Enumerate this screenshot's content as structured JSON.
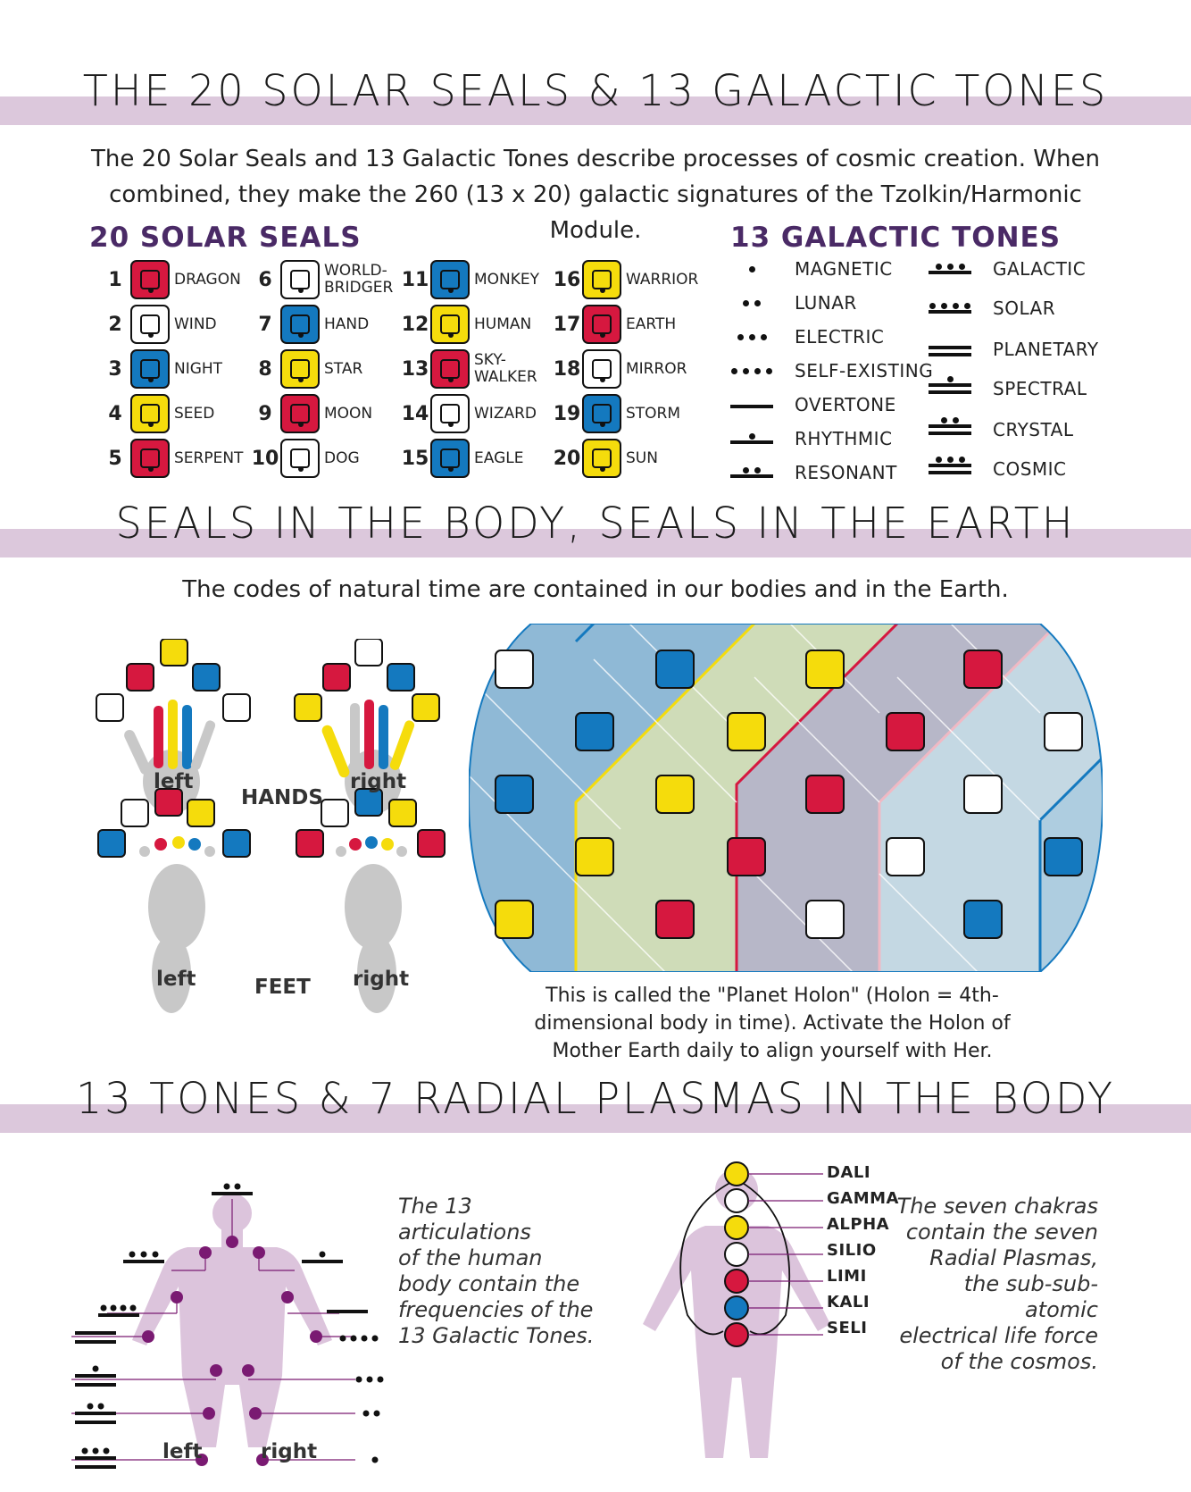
{
  "section1": {
    "title": "THE 20 SOLAR SEALS & 13 GALACTIC TONES",
    "intro_line1": "The 20 Solar Seals and 13 Galactic Tones describe processes of cosmic creation. When",
    "intro_line2": "combined, they make the 260 (13 x 20) galactic signatures of the Tzolkin/Harmonic Module."
  },
  "seals": {
    "heading": "20 SOLAR SEALS",
    "items": [
      {
        "num": "1",
        "name": "DRAGON",
        "color": "red",
        "icon": "dragon-glyph-icon"
      },
      {
        "num": "2",
        "name": "WIND",
        "color": "white",
        "icon": "wind-glyph-icon"
      },
      {
        "num": "3",
        "name": "NIGHT",
        "color": "blue",
        "icon": "night-glyph-icon"
      },
      {
        "num": "4",
        "name": "SEED",
        "color": "yellow",
        "icon": "seed-glyph-icon"
      },
      {
        "num": "5",
        "name": "SERPENT",
        "color": "red",
        "icon": "serpent-glyph-icon"
      },
      {
        "num": "6",
        "name": "WORLD-\nBRIDGER",
        "color": "white",
        "icon": "worldbridger-glyph-icon"
      },
      {
        "num": "7",
        "name": "HAND",
        "color": "blue",
        "icon": "hand-glyph-icon"
      },
      {
        "num": "8",
        "name": "STAR",
        "color": "yellow",
        "icon": "star-glyph-icon"
      },
      {
        "num": "9",
        "name": "MOON",
        "color": "red",
        "icon": "moon-glyph-icon"
      },
      {
        "num": "10",
        "name": "DOG",
        "color": "white",
        "icon": "dog-glyph-icon"
      },
      {
        "num": "11",
        "name": "MONKEY",
        "color": "blue",
        "icon": "monkey-glyph-icon"
      },
      {
        "num": "12",
        "name": "HUMAN",
        "color": "yellow",
        "icon": "human-glyph-icon"
      },
      {
        "num": "13",
        "name": "SKY-\nWALKER",
        "color": "red",
        "icon": "skywalker-glyph-icon"
      },
      {
        "num": "14",
        "name": "WIZARD",
        "color": "white",
        "icon": "wizard-glyph-icon"
      },
      {
        "num": "15",
        "name": "EAGLE",
        "color": "blue",
        "icon": "eagle-glyph-icon"
      },
      {
        "num": "16",
        "name": "WARRIOR",
        "color": "yellow",
        "icon": "warrior-glyph-icon"
      },
      {
        "num": "17",
        "name": "EARTH",
        "color": "red",
        "icon": "earth-glyph-icon"
      },
      {
        "num": "18",
        "name": "MIRROR",
        "color": "white",
        "icon": "mirror-glyph-icon"
      },
      {
        "num": "19",
        "name": "STORM",
        "color": "blue",
        "icon": "storm-glyph-icon"
      },
      {
        "num": "20",
        "name": "SUN",
        "color": "yellow",
        "icon": "sun-glyph-icon"
      }
    ]
  },
  "tones": {
    "heading": "13 GALACTIC TONES",
    "items": [
      {
        "name": "MAGNETIC",
        "dots": 1,
        "bars": 0
      },
      {
        "name": "LUNAR",
        "dots": 2,
        "bars": 0
      },
      {
        "name": "ELECTRIC",
        "dots": 3,
        "bars": 0
      },
      {
        "name": "SELF-EXISTING",
        "dots": 4,
        "bars": 0
      },
      {
        "name": "OVERTONE",
        "dots": 0,
        "bars": 1
      },
      {
        "name": "RHYTHMIC",
        "dots": 1,
        "bars": 1
      },
      {
        "name": "RESONANT",
        "dots": 2,
        "bars": 1
      },
      {
        "name": "GALACTIC",
        "dots": 3,
        "bars": 1
      },
      {
        "name": "SOLAR",
        "dots": 4,
        "bars": 1
      },
      {
        "name": "PLANETARY",
        "dots": 0,
        "bars": 2
      },
      {
        "name": "SPECTRAL",
        "dots": 1,
        "bars": 2
      },
      {
        "name": "CRYSTAL",
        "dots": 2,
        "bars": 2
      },
      {
        "name": "COSMIC",
        "dots": 3,
        "bars": 2
      }
    ]
  },
  "section2": {
    "title": "SEALS IN THE BODY, SEALS IN THE EARTH",
    "intro": "The codes of natural time are contained in our bodies and in the Earth.",
    "hands_label": "HANDS",
    "feet_label": "FEET",
    "left": "left",
    "right": "right",
    "holon_caption_1": "This is called the \"Planet Holon\" (Holon = 4th-",
    "holon_caption_2": "dimensional body in time). Activate the Holon of",
    "holon_caption_3": "Mother Earth daily to align yourself with Her."
  },
  "section3": {
    "title": "13 TONES & 7 RADIAL PLASMAS IN THE BODY",
    "note_left": [
      "The 13 articulations",
      "of the human",
      "body contain the",
      "frequencies of the",
      "13 Galactic Tones."
    ],
    "note_right": [
      "The seven chakras",
      "contain the seven",
      "Radial Plasmas,",
      "the sub-sub-atomic",
      "electrical life force",
      "of the cosmos."
    ],
    "left": "left",
    "right": "right",
    "plasmas": [
      "DALI",
      "GAMMA",
      "ALPHA",
      "SILIO",
      "LIMI",
      "KALI",
      "SELI"
    ]
  },
  "colors": {
    "red": "#d6183f",
    "white": "#ffffff",
    "blue": "#1479bf",
    "yellow": "#f5dc0c",
    "band": "#dcc8dc",
    "heading_purple": "#4a2a66",
    "body_lilac": "#dcc4dc",
    "joint": "#7a1a72"
  }
}
